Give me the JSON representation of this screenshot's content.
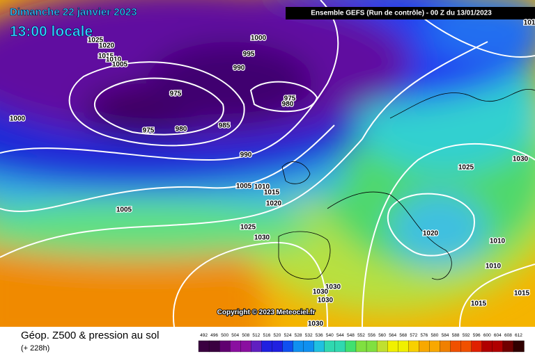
{
  "header": {
    "date": "Dimanche 22 janvier 2023",
    "time": "13:00 locale",
    "model": "Ensemble GEFS  (Run de contrôle)  -  00 Z du 13/01/2023",
    "copyright": "Copyright © 2023 Meteociel.fr"
  },
  "legend": {
    "title": "Géop. Z500 & pression au sol",
    "lead": "(+ 228h)",
    "scale": [
      "492",
      "496",
      "500",
      "504",
      "508",
      "512",
      "516",
      "520",
      "524",
      "528",
      "532",
      "536",
      "540",
      "544",
      "548",
      "552",
      "556",
      "560",
      "564",
      "568",
      "572",
      "576",
      "580",
      "584",
      "588",
      "592",
      "596",
      "600",
      "604",
      "608",
      "612"
    ]
  },
  "isobar_labels": [
    "1025",
    "1020",
    "1015",
    "1010",
    "1005",
    "1000",
    "995",
    "990",
    "975",
    "975",
    "980",
    "975",
    "980",
    "985",
    "1000",
    "990",
    "1005",
    "1010",
    "1015",
    "1020",
    "1005",
    "1025",
    "1030",
    "1025",
    "1030",
    "1020",
    "1010",
    "1010",
    "1030",
    "1030",
    "1030",
    "1015",
    "1015",
    "1030",
    "101"
  ]
}
